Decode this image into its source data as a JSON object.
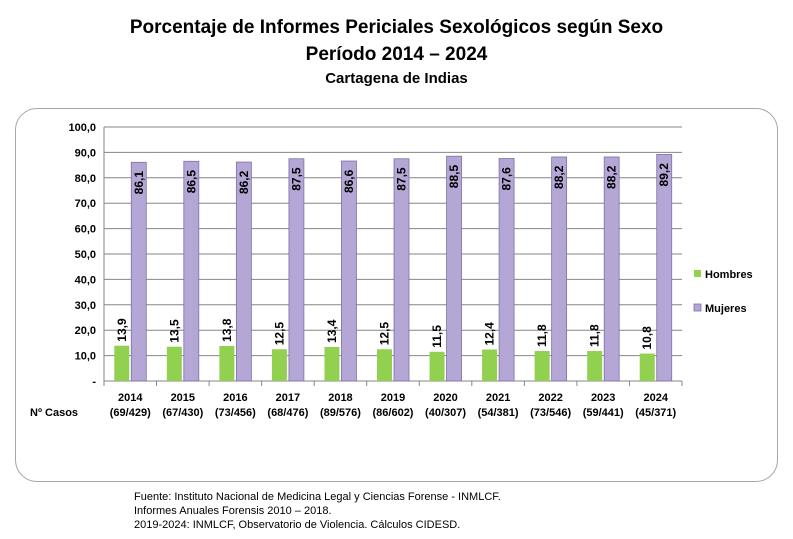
{
  "header": {
    "title": "Porcentaje de Informes Periciales Sexológicos según Sexo",
    "subtitle": "Período 2014 – 2024",
    "location": "Cartagena de Indias"
  },
  "footer": {
    "source_line1": "Fuente: Instituto Nacional de Medicina Legal y Ciencias Forense - INMLCF.",
    "source_line2": "Informes Anuales Forensis 2010 – 2018.",
    "source_line3": "2019-2024: INMLCF, Observatorio de Violencia. Cálculos CIDESD."
  },
  "colors": {
    "hombres": "#92d050",
    "mujeres": "#b4a7d6",
    "mujeres_border": "#7f6fa8",
    "grid": "#868686"
  },
  "chart_data": {
    "type": "bar",
    "categories": [
      "2014",
      "2015",
      "2016",
      "2017",
      "2018",
      "2019",
      "2020",
      "2021",
      "2022",
      "2023",
      "2024"
    ],
    "case_counts": [
      "(69/429)",
      "(67/430)",
      "(73/456)",
      "(68/476)",
      "(89/576)",
      "(86/602)",
      "(40/307)",
      "(54/381)",
      "(73/546)",
      "(59/441)",
      "(45/371)"
    ],
    "cases_label": "Nº Casos",
    "series": [
      {
        "name": "Hombres",
        "values": [
          13.9,
          13.5,
          13.8,
          12.5,
          13.4,
          12.5,
          11.5,
          12.4,
          11.8,
          11.8,
          10.8
        ],
        "labels": [
          "13,9",
          "13,5",
          "13,8",
          "12,5",
          "13,4",
          "12,5",
          "11,5",
          "12,4",
          "11,8",
          "11,8",
          "10,8"
        ]
      },
      {
        "name": "Mujeres",
        "values": [
          86.1,
          86.5,
          86.2,
          87.5,
          86.6,
          87.5,
          88.5,
          87.6,
          88.2,
          88.2,
          89.2
        ],
        "labels": [
          "86,1",
          "86,5",
          "86,2",
          "87,5",
          "86,6",
          "87,5",
          "88,5",
          "87,6",
          "88,2",
          "88,2",
          "89,2"
        ]
      }
    ],
    "yticks": [
      "-",
      "10,0",
      "20,0",
      "30,0",
      "40,0",
      "50,0",
      "60,0",
      "70,0",
      "80,0",
      "90,0",
      "100,0"
    ],
    "ylim": [
      0,
      100
    ],
    "grid": true,
    "legend": "right"
  }
}
